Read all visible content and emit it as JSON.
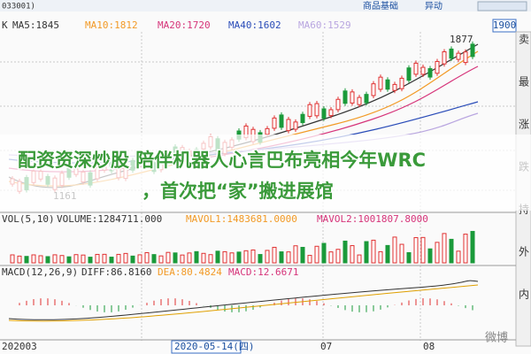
{
  "header": {
    "code": "033001)",
    "links": [
      "商品基础",
      "异动"
    ]
  },
  "indicators": {
    "kline": [
      "K",
      "MA5:1845",
      "MA10:1812",
      "MA20:1720",
      "MA40:1602",
      "MA60:1529"
    ],
    "volume": [
      "VOL(5,10)",
      "VOLUME:1284711.000",
      "MAVOL1:1483681.0000",
      "MAVOL2:1001807.8000"
    ],
    "macd": [
      "MACD(12,26,9)",
      "DIFF:86.8160",
      "DEA:80.4824",
      "MACD:12.6671"
    ]
  },
  "price_labels": {
    "high": "1877",
    "low": "1161",
    "axis": "1900"
  },
  "dates": [
    "202003",
    "2020-05-14(四)",
    "07",
    "08"
  ],
  "banner": {
    "line1": "配资资深炒股 陪伴机器人心言巴布亮相今年WRC",
    "line2": "，首次把“家”搬进展馆"
  },
  "side_panel": [
    "卖",
    "最",
    "涨",
    "跌",
    "持",
    "外",
    "内"
  ],
  "watermark": "微博"
}
